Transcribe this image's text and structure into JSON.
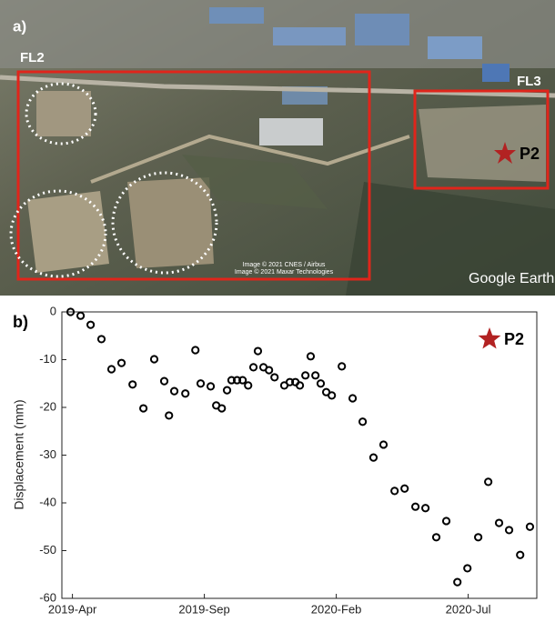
{
  "panel_a": {
    "label": "a)",
    "region_left": "FL2",
    "region_right": "FL3",
    "point": "P2",
    "credit_1": "Image © 2021 CNES / Airbus",
    "credit_2": "Image © 2021 Maxar Technologies",
    "watermark": "Google Earth"
  },
  "chart_data": {
    "type": "scatter",
    "panel_label": "b)",
    "ylabel": "Displacement (mm)",
    "series": [
      {
        "name": "P2",
        "color": "#000000",
        "marker_color": "#b22222",
        "x": [
          -0.07,
          0.31,
          0.69,
          1.1,
          1.48,
          1.86,
          2.28,
          2.69,
          3.1,
          3.48,
          3.66,
          3.86,
          4.28,
          4.66,
          4.86,
          5.24,
          5.45,
          5.66,
          5.86,
          6.03,
          6.24,
          6.45,
          6.66,
          6.86,
          7.03,
          7.24,
          7.45,
          7.66,
          8.03,
          8.24,
          8.45,
          8.62,
          8.83,
          9.03,
          9.21,
          9.41,
          9.62,
          9.83,
          10.21,
          10.62,
          11,
          11.41,
          11.79,
          12.21,
          12.59,
          13,
          13.38,
          13.79,
          14.17,
          14.59,
          14.97,
          15.38,
          15.76,
          16.17,
          16.55,
          16.97,
          17.34
        ],
        "values": [
          0,
          -0.8,
          -2.7,
          -5.7,
          -12,
          -10.7,
          -15.2,
          -20.2,
          -9.9,
          -14.5,
          -21.7,
          -16.6,
          -17.1,
          -8,
          -15,
          -15.6,
          -19.6,
          -20.2,
          -16.4,
          -14.3,
          -14.3,
          -14.3,
          -15.4,
          -11.6,
          -8.2,
          -11.6,
          -12.2,
          -13.7,
          -15.4,
          -14.7,
          -14.7,
          -15.4,
          -13.3,
          -9.3,
          -13.3,
          -15,
          -16.8,
          -17.5,
          -11.4,
          -18.1,
          -23,
          -30.5,
          -27.8,
          -37.5,
          -37,
          -40.8,
          -41.1,
          -47.2,
          -43.8,
          -56.6,
          -53.7,
          -47.2,
          -35.6,
          -44.2,
          -45.7,
          -50.9,
          -45
        ]
      }
    ],
    "xlim": [
      -0.4,
      17.6
    ],
    "xticks": [
      {
        "value": 0,
        "label": "2019-Apr"
      },
      {
        "value": 5,
        "label": "2019-Sep"
      },
      {
        "value": 10,
        "label": "2020-Feb"
      },
      {
        "value": 15,
        "label": "2020-Jul"
      }
    ],
    "ylim": [
      -60,
      0
    ],
    "yticks": [
      0,
      -10,
      -20,
      -30,
      -40,
      -50,
      -60
    ],
    "legend": "upper right"
  }
}
